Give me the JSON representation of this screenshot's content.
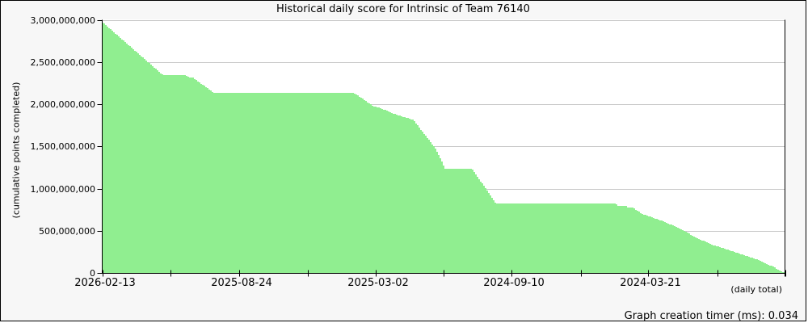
{
  "chart_data": {
    "type": "area",
    "title": "Historical daily score for Intrinsic of Team 76140",
    "ylabel": "(cumulative points completed)",
    "xlabel": "(daily total)",
    "footer": "Graph creation timer (ms): 0.034",
    "legend": "none",
    "grid": "horizontal",
    "colors": {
      "fill": "#90EE90",
      "grid": "#c8c8c8",
      "axis": "#000000",
      "plot_bg": "#ffffff",
      "page_bg": "#f7f7f7",
      "text": "#000000"
    },
    "axes": {
      "ylim": [
        0,
        3000000000
      ],
      "y_ticks": [
        0,
        500000000,
        1000000000,
        1500000000,
        2000000000,
        2500000000,
        3000000000
      ],
      "x_axis_reversed_time": true,
      "x_ticks": [
        {
          "pos": 0.0,
          "label": "2026-02-13"
        },
        {
          "pos": 0.1005,
          "label": ""
        },
        {
          "pos": 0.2009,
          "label": "2025-08-24"
        },
        {
          "pos": 0.3014,
          "label": ""
        },
        {
          "pos": 0.4007,
          "label": "2025-03-02"
        },
        {
          "pos": 0.5,
          "label": ""
        },
        {
          "pos": 0.5993,
          "label": "2024-09-10"
        },
        {
          "pos": 0.7009,
          "label": ""
        },
        {
          "pos": 0.7991,
          "label": "2024-03-21"
        },
        {
          "pos": 0.9007,
          "label": ""
        },
        {
          "pos": 1.0,
          "label": ""
        }
      ]
    },
    "series": [
      {
        "name": "cumulative points completed",
        "points": [
          [
            0.0,
            2970000000
          ],
          [
            0.089,
            2340000000
          ],
          [
            0.123,
            2340000000
          ],
          [
            0.128,
            2315000000
          ],
          [
            0.132,
            2315000000
          ],
          [
            0.163,
            2135000000
          ],
          [
            0.368,
            2135000000
          ],
          [
            0.396,
            1980000000
          ],
          [
            0.408,
            1950000000
          ],
          [
            0.432,
            1870000000
          ],
          [
            0.455,
            1815000000
          ],
          [
            0.47,
            1660000000
          ],
          [
            0.487,
            1480000000
          ],
          [
            0.502,
            1235000000
          ],
          [
            0.541,
            1235000000
          ],
          [
            0.556,
            1060000000
          ],
          [
            0.576,
            820000000
          ],
          [
            0.752,
            820000000
          ],
          [
            0.755,
            795000000
          ],
          [
            0.766,
            795000000
          ],
          [
            0.77,
            773000000
          ],
          [
            0.777,
            773000000
          ],
          [
            0.79,
            700000000
          ],
          [
            0.822,
            610000000
          ],
          [
            0.845,
            528000000
          ],
          [
            0.869,
            420000000
          ],
          [
            0.892,
            337000000
          ],
          [
            0.916,
            274000000
          ],
          [
            0.94,
            210000000
          ],
          [
            0.963,
            146000000
          ],
          [
            0.975,
            100000000
          ],
          [
            0.984,
            67000000
          ],
          [
            0.989,
            35000000
          ],
          [
            0.995,
            12000000
          ],
          [
            1.0,
            8000000
          ]
        ]
      }
    ]
  }
}
